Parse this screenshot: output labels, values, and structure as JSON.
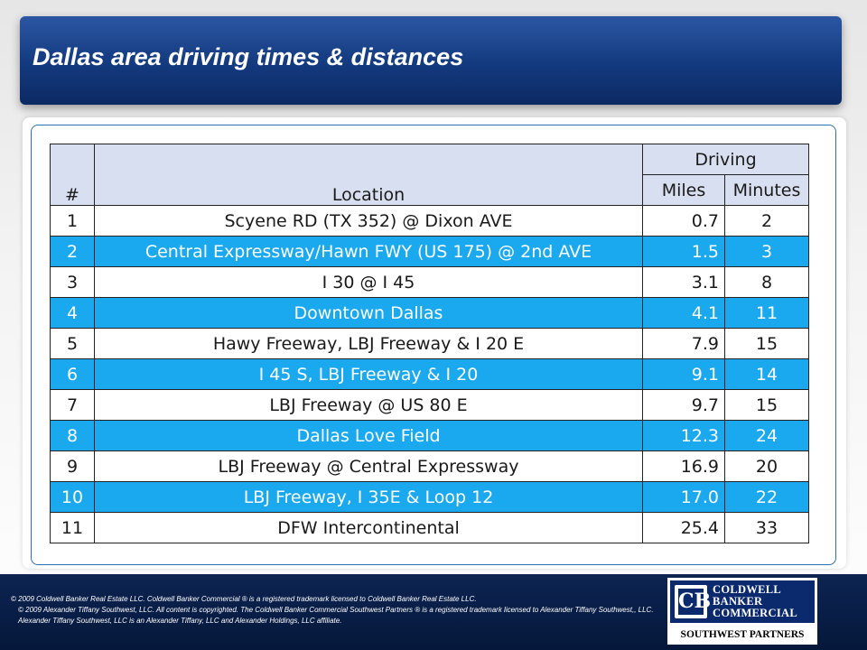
{
  "slide": {
    "title": "Dallas area driving times & distances"
  },
  "table": {
    "header": {
      "num": "#",
      "location": "Location",
      "group": "Driving",
      "miles": "Miles",
      "minutes": "Minutes"
    },
    "rows": [
      {
        "num": "1",
        "location": "Scyene RD (TX 352) @ Dixon AVE",
        "miles": "0.7",
        "minutes": "2",
        "highlight": false
      },
      {
        "num": "2",
        "location": "Central Expressway/Hawn FWY (US 175) @ 2nd AVE",
        "miles": "1.5",
        "minutes": "3",
        "highlight": true
      },
      {
        "num": "3",
        "location": "I 30 @ I 45",
        "miles": "3.1",
        "minutes": "8",
        "highlight": false
      },
      {
        "num": "4",
        "location": "Downtown Dallas",
        "miles": "4.1",
        "minutes": "11",
        "highlight": true
      },
      {
        "num": "5",
        "location": "Hawy Freeway, LBJ Freeway & I 20  E",
        "miles": "7.9",
        "minutes": "15",
        "highlight": false
      },
      {
        "num": "6",
        "location": "I 45 S, LBJ Freeway & I 20",
        "miles": "9.1",
        "minutes": "14",
        "highlight": true
      },
      {
        "num": "7",
        "location": "LBJ Freeway @ US 80 E",
        "miles": "9.7",
        "minutes": "15",
        "highlight": false
      },
      {
        "num": "8",
        "location": "Dallas Love Field",
        "miles": "12.3",
        "minutes": "24",
        "highlight": true
      },
      {
        "num": "9",
        "location": "LBJ Freeway @ Central Expressway",
        "miles": "16.9",
        "minutes": "20",
        "highlight": false
      },
      {
        "num": "10",
        "location": "LBJ Freeway, I 35E & Loop 12",
        "miles": "17.0",
        "minutes": "22",
        "highlight": true
      },
      {
        "num": "11",
        "location": "DFW Intercontinental",
        "miles": "25.4",
        "minutes": "33",
        "highlight": false
      }
    ]
  },
  "footer": {
    "legal_line1": "© 2009 Coldwell Banker Real Estate LLC. Coldwell Banker Commercial ® is a registered trademark licensed to Coldwell Banker Real Estate LLC.",
    "legal_line2": "© 2009 Alexander Tiffany Southwest, LLC. All content is copyrighted. The Coldwell Banker Commercial Southwest Partners ® is a registered trademark licensed to Alexander Tiffany Southwest,, LLC.  Alexander Tiffany Southwest, LLC is an Alexander Tiffany, LLC and Alexander Holdings, LLC affiliate.",
    "logo": {
      "mark": "CB",
      "line1": "COLDWELL",
      "line2": "BANKER",
      "line3": "COMMERCIAL",
      "subtitle": "SOUTHWEST PARTNERS"
    }
  },
  "colors": {
    "title_bar": "#13397e",
    "highlight_row": "#1aa9ef",
    "header_fill": "#d8dff0",
    "footer": "#0d2452"
  }
}
